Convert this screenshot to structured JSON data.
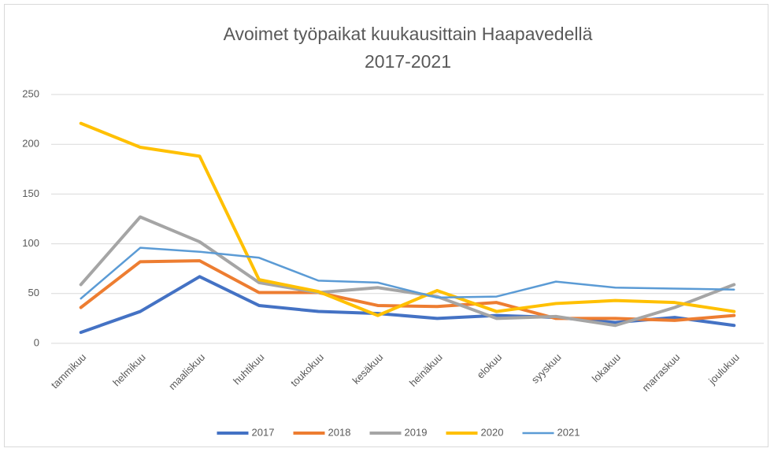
{
  "chart_data": {
    "type": "line",
    "title": [
      "Avoimet työpaikat kuukausittain Haapavedellä",
      "2017-2021"
    ],
    "categories": [
      "tammikuu",
      "helmikuu",
      "maaliskuu",
      "huhtikuu",
      "toukokuu",
      "kesäkuu",
      "heinäkuu",
      "elokuu",
      "syyskuu",
      "lokakuu",
      "marraskuu",
      "joulukuu"
    ],
    "series": [
      {
        "name": "2017",
        "color": "#4472c4",
        "values": [
          11,
          32,
          67,
          38,
          32,
          30,
          25,
          28,
          26,
          21,
          26,
          18
        ]
      },
      {
        "name": "2018",
        "color": "#ed7d31",
        "values": [
          36,
          82,
          83,
          51,
          51,
          38,
          37,
          41,
          25,
          25,
          23,
          28
        ]
      },
      {
        "name": "2019",
        "color": "#a5a5a5",
        "values": [
          59,
          127,
          102,
          61,
          51,
          56,
          47,
          25,
          27,
          18,
          36,
          59
        ]
      },
      {
        "name": "2020",
        "color": "#ffc000",
        "values": [
          221,
          197,
          188,
          64,
          52,
          28,
          53,
          32,
          40,
          43,
          41,
          32
        ]
      },
      {
        "name": "2021",
        "color": "#5b9bd5",
        "values": [
          45,
          96,
          92,
          86,
          63,
          61,
          46,
          47,
          62,
          56,
          55,
          54
        ]
      }
    ],
    "ylim": [
      0,
      250
    ],
    "yticks": [
      0,
      50,
      100,
      150,
      200,
      250
    ],
    "grid": true,
    "legend": "bottom"
  }
}
